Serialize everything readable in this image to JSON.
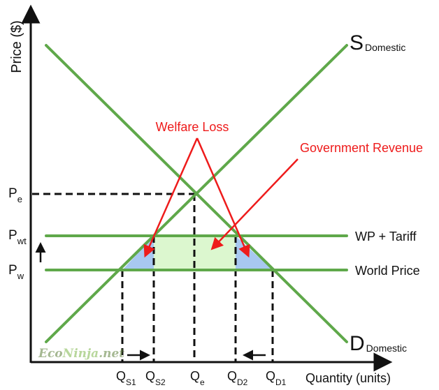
{
  "axes": {
    "y_label": "Price ($)",
    "x_label": "Quantity (units)"
  },
  "curves": {
    "supply": {
      "letter": "S",
      "sub": "Domestic"
    },
    "demand": {
      "letter": "D",
      "sub": "Domestic"
    }
  },
  "price_lines": {
    "tariff_line_label": "WP + Tariff",
    "world_line_label": "World Price"
  },
  "price_labels": {
    "pe": {
      "main": "P",
      "sub": "e"
    },
    "pwt": {
      "main": "P",
      "sub": "wt"
    },
    "pw": {
      "main": "P",
      "sub": "w"
    }
  },
  "quantity_labels": [
    {
      "main": "Q",
      "sub": "S1"
    },
    {
      "main": "Q",
      "sub": "S2"
    },
    {
      "main": "Q",
      "sub": "e"
    },
    {
      "main": "Q",
      "sub": "D2"
    },
    {
      "main": "Q",
      "sub": "D1"
    }
  ],
  "annotations": {
    "welfare_loss": "Welfare Loss",
    "government_revenue": "Government Revenue"
  },
  "watermark": {
    "part1": "Eco",
    "part2": "Ninja",
    "part3": ".net"
  },
  "colors": {
    "curve_green": "#5fa84a",
    "welfare_loss_fill": "#a8c8f0",
    "revenue_fill": "#dcf7cf",
    "annotation_red": "#ee1b1b",
    "axis": "#111111"
  }
}
